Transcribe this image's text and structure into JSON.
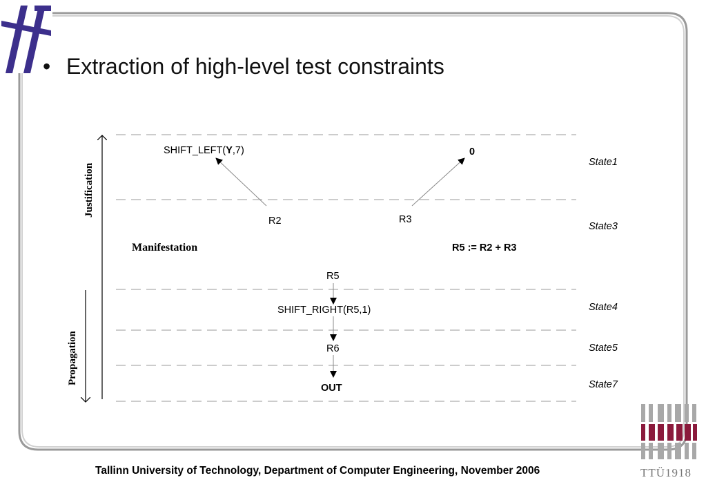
{
  "title": "Extraction of high-level test constraints",
  "footer": "Tallinn University of Technology, Department of Computer Engineering, November 2006",
  "logo_text": "TTÜ1918",
  "diagram": {
    "nodes": {
      "shift_left_prefix": "SHIFT_LEFT(",
      "shift_left_bold": "Y",
      "shift_left_suffix": ",7)",
      "zero": "0",
      "r2": "R2",
      "r3": "R3",
      "r5": "R5",
      "shift_right": "SHIFT_RIGHT(R5,1)",
      "r6": "R6",
      "out": "OUT"
    },
    "equation": "R5 := R2 + R3",
    "manifestation": "Manifestation",
    "justification": "Justification",
    "propagation": "Propagation",
    "states": [
      "State1",
      "State3",
      "State4",
      "State5",
      "State7"
    ]
  },
  "colors": {
    "accent": "#3c2f8c",
    "maroon": "#8b1a3c",
    "frame": "#9a9a9a"
  }
}
